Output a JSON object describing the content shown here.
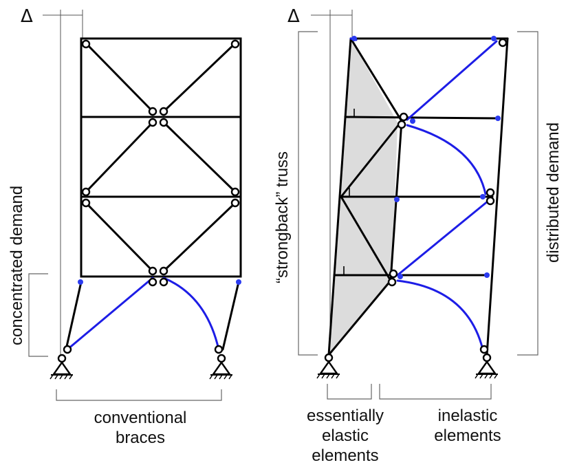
{
  "left_frame": {
    "delta_symbol": "Δ",
    "side_label": "concentrated demand",
    "bottom_label_line1": "conventional",
    "bottom_label_line2": "braces"
  },
  "right_frame": {
    "delta_symbol": "Δ",
    "left_side_label": "“strongback” truss",
    "right_side_label": "distributed demand",
    "bottom_left_label_line1": "essentially",
    "bottom_left_label_line2": "elastic",
    "bottom_left_label_line3": "elements",
    "bottom_right_label_line1": "inelastic",
    "bottom_right_label_line2": "elements"
  },
  "colors": {
    "members": "#000000",
    "yielding_braces": "#1d1de6",
    "strongback_fill": "#dcdcdc"
  }
}
